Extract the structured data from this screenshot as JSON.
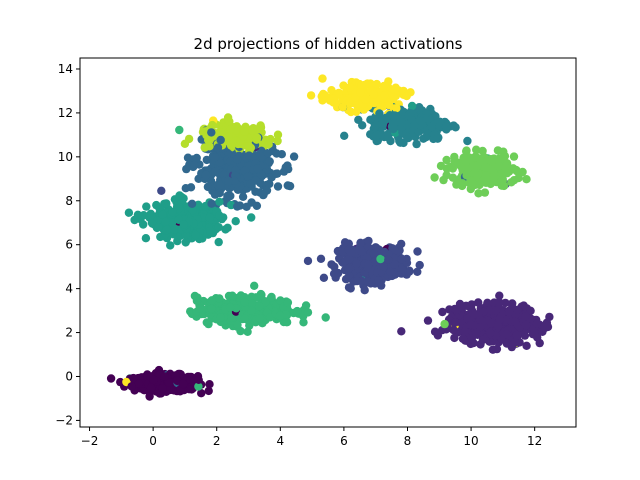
{
  "chart_data": {
    "type": "scatter",
    "title": "2d projections of hidden activations",
    "xlabel": "",
    "ylabel": "",
    "xlim": [
      -2.3,
      13.3
    ],
    "ylim": [
      -2.3,
      14.5
    ],
    "xticks": [
      -2,
      0,
      2,
      4,
      6,
      8,
      10,
      12
    ],
    "yticks": [
      -2,
      0,
      2,
      4,
      6,
      8,
      10,
      12,
      14
    ],
    "grid": false,
    "legend": "none",
    "colormap": "viridis",
    "clusters": [
      {
        "class": 0,
        "color": "#440154",
        "center": [
          0.4,
          -0.3
        ],
        "spread": [
          1.1,
          0.4
        ],
        "count": 420
      },
      {
        "class": 1,
        "color": "#482878",
        "center": [
          10.7,
          2.4
        ],
        "spread": [
          1.6,
          0.9
        ],
        "count": 460
      },
      {
        "class": 2,
        "color": "#3e4a89",
        "center": [
          6.9,
          5.2
        ],
        "spread": [
          1.2,
          0.9
        ],
        "count": 300
      },
      {
        "class": 3,
        "color": "#31688e",
        "center": [
          2.6,
          9.4
        ],
        "spread": [
          1.4,
          1.4
        ],
        "count": 380
      },
      {
        "class": 4,
        "color": "#26828e",
        "center": [
          8.1,
          11.5
        ],
        "spread": [
          1.4,
          0.8
        ],
        "count": 260
      },
      {
        "class": 5,
        "color": "#1f9e89",
        "center": [
          1.0,
          7.1
        ],
        "spread": [
          1.3,
          0.9
        ],
        "count": 320
      },
      {
        "class": 6,
        "color": "#35b779",
        "center": [
          2.9,
          3.0
        ],
        "spread": [
          1.7,
          0.7
        ],
        "count": 360
      },
      {
        "class": 7,
        "color": "#6ece58",
        "center": [
          10.4,
          9.4
        ],
        "spread": [
          1.1,
          0.8
        ],
        "count": 260
      },
      {
        "class": 8,
        "color": "#b5de2b",
        "center": [
          2.6,
          10.9
        ],
        "spread": [
          1.3,
          0.6
        ],
        "count": 200
      },
      {
        "class": 9,
        "color": "#fde725",
        "center": [
          6.6,
          12.7
        ],
        "spread": [
          1.2,
          0.6
        ],
        "count": 260
      }
    ]
  }
}
